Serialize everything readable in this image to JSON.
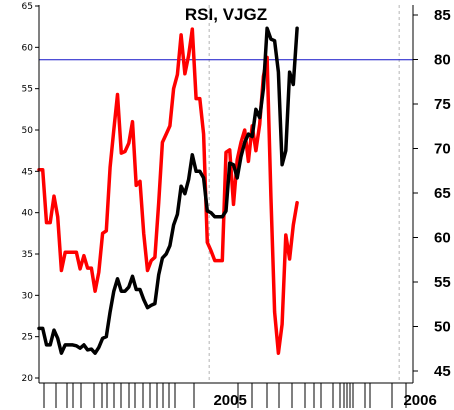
{
  "chart_data": {
    "type": "line",
    "title": "RSI, VJGZ",
    "x_tick_labels": [
      "2005",
      "2006"
    ],
    "x_range": [
      0,
      100
    ],
    "year_dividers": [
      45.5,
      96.3
    ],
    "left_axis": {
      "ylim": [
        20,
        65
      ],
      "ticks": [
        20,
        25,
        30,
        35,
        40,
        45,
        50,
        55,
        60,
        65
      ]
    },
    "right_axis": {
      "ylim": [
        45,
        85
      ],
      "ticks": [
        45,
        50,
        55,
        60,
        65,
        70,
        75,
        80,
        85
      ]
    },
    "reference_line": {
      "value": 58.5,
      "axis": "left",
      "color": "#1414c8"
    },
    "grid": false,
    "series": [
      {
        "axis": "left",
        "color": "#ff0000",
        "points": [
          [
            0,
            45.2
          ],
          [
            1,
            45.2
          ],
          [
            2,
            38.8
          ],
          [
            3,
            38.8
          ],
          [
            4,
            42.0
          ],
          [
            5,
            39.5
          ],
          [
            6,
            33.0
          ],
          [
            7,
            35.2
          ],
          [
            8,
            35.2
          ],
          [
            9,
            35.2
          ],
          [
            10,
            35.2
          ],
          [
            11,
            33.2
          ],
          [
            12,
            34.8
          ],
          [
            13,
            33.3
          ],
          [
            14,
            33.3
          ],
          [
            15,
            30.5
          ],
          [
            16,
            32.8
          ],
          [
            17,
            37.5
          ],
          [
            18,
            37.8
          ],
          [
            19,
            45.5
          ],
          [
            20,
            50.0
          ],
          [
            21,
            54.3
          ],
          [
            22,
            47.2
          ],
          [
            23,
            47.4
          ],
          [
            24,
            48.4
          ],
          [
            25,
            51.0
          ],
          [
            26,
            43.3
          ],
          [
            27,
            43.8
          ],
          [
            28,
            37.5
          ],
          [
            29,
            33.0
          ],
          [
            30,
            34.2
          ],
          [
            31,
            34.6
          ],
          [
            32,
            41.2
          ],
          [
            33,
            48.5
          ],
          [
            34,
            49.5
          ],
          [
            35,
            50.5
          ],
          [
            36,
            55.0
          ],
          [
            37,
            56.7
          ],
          [
            38,
            61.5
          ],
          [
            39,
            56.8
          ],
          [
            40,
            59.0
          ],
          [
            41,
            62.2
          ],
          [
            42,
            53.8
          ],
          [
            43,
            53.8
          ],
          [
            44,
            49.5
          ],
          [
            45,
            36.4
          ],
          [
            46,
            35.4
          ],
          [
            47,
            34.2
          ],
          [
            48,
            34.2
          ],
          [
            49,
            34.2
          ],
          [
            50,
            47.3
          ],
          [
            51,
            47.6
          ],
          [
            52,
            41.0
          ],
          [
            53,
            46.4
          ],
          [
            54,
            48.5
          ],
          [
            55,
            50.0
          ],
          [
            56,
            46.2
          ],
          [
            57,
            50.5
          ],
          [
            58,
            47.5
          ],
          [
            59,
            50.7
          ],
          [
            60,
            56.5
          ],
          [
            61,
            58.8
          ],
          [
            62,
            42.0
          ],
          [
            63,
            28.0
          ],
          [
            64,
            23.0
          ],
          [
            65,
            26.5
          ],
          [
            66,
            37.3
          ],
          [
            67,
            34.4
          ],
          [
            68,
            38.5
          ],
          [
            69,
            41.2
          ]
        ]
      },
      {
        "axis": "left",
        "color": "#000000",
        "points": [
          [
            0,
            26.0
          ],
          [
            1,
            26.0
          ],
          [
            2,
            24.0
          ],
          [
            3,
            24.0
          ],
          [
            4,
            25.8
          ],
          [
            5,
            24.8
          ],
          [
            6,
            23.0
          ],
          [
            7,
            24.0
          ],
          [
            8,
            24.0
          ],
          [
            9,
            24.0
          ],
          [
            10,
            23.9
          ],
          [
            11,
            23.6
          ],
          [
            12,
            24.0
          ],
          [
            13,
            23.4
          ],
          [
            14,
            23.5
          ],
          [
            15,
            23.0
          ],
          [
            16,
            23.7
          ],
          [
            17,
            24.8
          ],
          [
            18,
            25.0
          ],
          [
            19,
            28.0
          ],
          [
            20,
            30.5
          ],
          [
            21,
            32.0
          ],
          [
            22,
            30.5
          ],
          [
            23,
            30.5
          ],
          [
            24,
            31.0
          ],
          [
            25,
            32.3
          ],
          [
            26,
            30.7
          ],
          [
            27,
            30.7
          ],
          [
            28,
            29.5
          ],
          [
            29,
            28.5
          ],
          [
            30,
            28.8
          ],
          [
            31,
            29.0
          ],
          [
            32,
            32.5
          ],
          [
            33,
            34.5
          ],
          [
            34,
            35.0
          ],
          [
            35,
            36.0
          ],
          [
            36,
            38.5
          ],
          [
            37,
            39.8
          ],
          [
            38,
            43.2
          ],
          [
            39,
            42.3
          ],
          [
            40,
            44.0
          ],
          [
            41,
            47.0
          ],
          [
            42,
            45.0
          ],
          [
            43,
            45.0
          ],
          [
            44,
            44.2
          ],
          [
            45,
            40.2
          ],
          [
            46,
            40.0
          ],
          [
            47,
            39.5
          ],
          [
            48,
            39.5
          ],
          [
            49,
            39.5
          ],
          [
            50,
            40.2
          ],
          [
            51,
            46.0
          ],
          [
            52,
            45.8
          ],
          [
            53,
            44.2
          ],
          [
            54,
            46.8
          ],
          [
            55,
            48.5
          ],
          [
            56,
            49.5
          ],
          [
            57,
            49.2
          ],
          [
            58,
            52.5
          ],
          [
            59,
            51.5
          ],
          [
            60,
            55.0
          ],
          [
            61,
            62.3
          ],
          [
            62,
            61.0
          ],
          [
            63,
            60.8
          ],
          [
            64,
            57.0
          ],
          [
            65,
            45.8
          ],
          [
            66,
            47.5
          ],
          [
            67,
            57.0
          ],
          [
            68,
            55.5
          ],
          [
            69,
            62.3
          ]
        ]
      }
    ]
  }
}
